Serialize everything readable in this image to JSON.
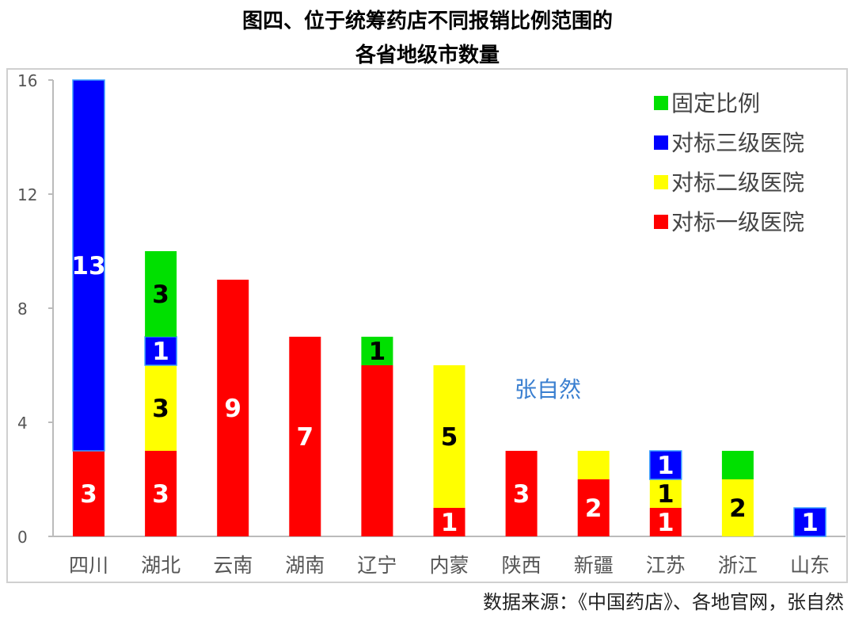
{
  "chart_data": {
    "type": "bar",
    "stacked": true,
    "title": [
      "图四、位于统筹药店不同报销比例范围的",
      "各省地级市数量"
    ],
    "source": "数据来源：《中国药店》、各地官网，张自然",
    "watermark": "张自然",
    "categories": [
      "四川",
      "湖北",
      "云南",
      "湖南",
      "辽宁",
      "内蒙",
      "陕西",
      "新疆",
      "江苏",
      "浙江",
      "山东"
    ],
    "ylim": [
      0,
      16
    ],
    "yticks": [
      0,
      4,
      8,
      12,
      16
    ],
    "grid": false,
    "legend_position": "top-right",
    "series": [
      {
        "name": "对标一级医院",
        "color": "#ff0000",
        "label_color": "#ffffff",
        "values": [
          3,
          3,
          9,
          7,
          6,
          1,
          3,
          2,
          1,
          0,
          0
        ],
        "labels": [
          "3",
          "3",
          "9",
          "7",
          null,
          "1",
          "3",
          "2",
          "1",
          null,
          null
        ]
      },
      {
        "name": "对标二级医院",
        "color": "#ffff00",
        "label_color": "#000000",
        "values": [
          0,
          3,
          0,
          0,
          0,
          5,
          0,
          1,
          1,
          2,
          0
        ],
        "labels": [
          null,
          "3",
          null,
          null,
          null,
          "5",
          null,
          null,
          "1",
          "2",
          null
        ]
      },
      {
        "name": "对标三级医院",
        "color": "#0000ff",
        "label_color": "#ffffff",
        "values": [
          13,
          1,
          0,
          0,
          0,
          0,
          0,
          0,
          1,
          0,
          1
        ],
        "labels": [
          "13",
          "1",
          null,
          null,
          null,
          null,
          null,
          null,
          "1",
          null,
          "1"
        ]
      },
      {
        "name": "固定比例",
        "color": "#00e000",
        "label_color": "#000000",
        "values": [
          0,
          3,
          0,
          0,
          1,
          0,
          0,
          0,
          0,
          1,
          0
        ],
        "labels": [
          null,
          "3",
          null,
          null,
          "1",
          null,
          null,
          null,
          null,
          null,
          null
        ]
      }
    ]
  }
}
